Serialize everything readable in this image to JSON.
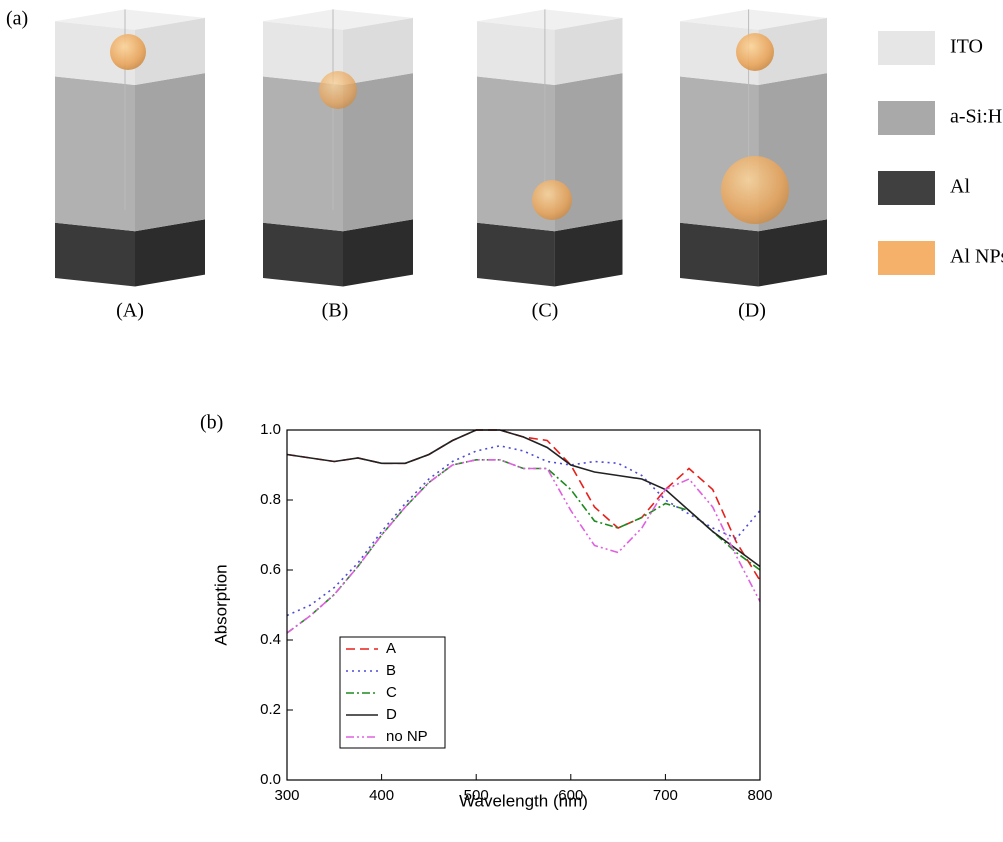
{
  "panel_a": {
    "label": "(a)",
    "blocks": [
      "(A)",
      "(B)",
      "(C)",
      "(D)"
    ],
    "legend": [
      {
        "name": "ITO",
        "color": "#e6e6e6"
      },
      {
        "name": "a-Si:H",
        "color": "#a9a9a9"
      },
      {
        "name": "Al",
        "color": "#404040"
      },
      {
        "name": "Al NPs",
        "color": "#f5b06a"
      }
    ]
  },
  "chart_data": {
    "type": "line",
    "panel_label": "(b)",
    "x_label": "Wavelength (nm)",
    "y_label": "Absorption",
    "x": [
      300,
      325,
      350,
      375,
      400,
      425,
      450,
      475,
      500,
      525,
      550,
      575,
      600,
      625,
      650,
      675,
      700,
      725,
      750,
      775,
      800
    ],
    "series": [
      {
        "name": "A",
        "color": "#e8201c",
        "dash": "dashed",
        "values": [
          0.93,
          0.92,
          0.91,
          0.92,
          0.905,
          0.905,
          0.93,
          0.97,
          1.0,
          1.0,
          0.98,
          0.97,
          0.9,
          0.78,
          0.72,
          0.75,
          0.83,
          0.89,
          0.83,
          0.68,
          0.57
        ]
      },
      {
        "name": "B",
        "color": "#4b4bd6",
        "dash": "dotted",
        "values": [
          0.47,
          0.5,
          0.55,
          0.62,
          0.71,
          0.79,
          0.86,
          0.91,
          0.94,
          0.955,
          0.94,
          0.91,
          0.9,
          0.91,
          0.905,
          0.87,
          0.8,
          0.76,
          0.72,
          0.69,
          0.77
        ]
      },
      {
        "name": "C",
        "color": "#1e8a1e",
        "dash": "dashdot",
        "values": [
          0.42,
          0.47,
          0.53,
          0.61,
          0.7,
          0.78,
          0.85,
          0.9,
          0.915,
          0.915,
          0.89,
          0.89,
          0.83,
          0.74,
          0.72,
          0.75,
          0.79,
          0.77,
          0.71,
          0.65,
          0.6
        ]
      },
      {
        "name": "D",
        "color": "#222222",
        "dash": "solid",
        "values": [
          0.93,
          0.92,
          0.91,
          0.92,
          0.905,
          0.905,
          0.93,
          0.97,
          1.0,
          1.0,
          0.98,
          0.95,
          0.9,
          0.88,
          0.87,
          0.86,
          0.83,
          0.77,
          0.71,
          0.66,
          0.61
        ]
      },
      {
        "name": "no NP",
        "color": "#e060e0",
        "dash": "dashdotdot",
        "values": [
          0.42,
          0.47,
          0.53,
          0.61,
          0.7,
          0.78,
          0.85,
          0.9,
          0.915,
          0.915,
          0.89,
          0.89,
          0.77,
          0.67,
          0.65,
          0.72,
          0.83,
          0.86,
          0.78,
          0.64,
          0.51
        ]
      }
    ],
    "xlim": [
      300,
      800
    ],
    "xticks": [
      300,
      400,
      500,
      600,
      700,
      800
    ],
    "ylim": [
      0,
      1
    ],
    "yticks": [
      {
        "value": 0,
        "label": "0.0"
      },
      0.2,
      0.4,
      0.6,
      0.8,
      {
        "value": 1,
        "label": "1.0"
      }
    ]
  }
}
